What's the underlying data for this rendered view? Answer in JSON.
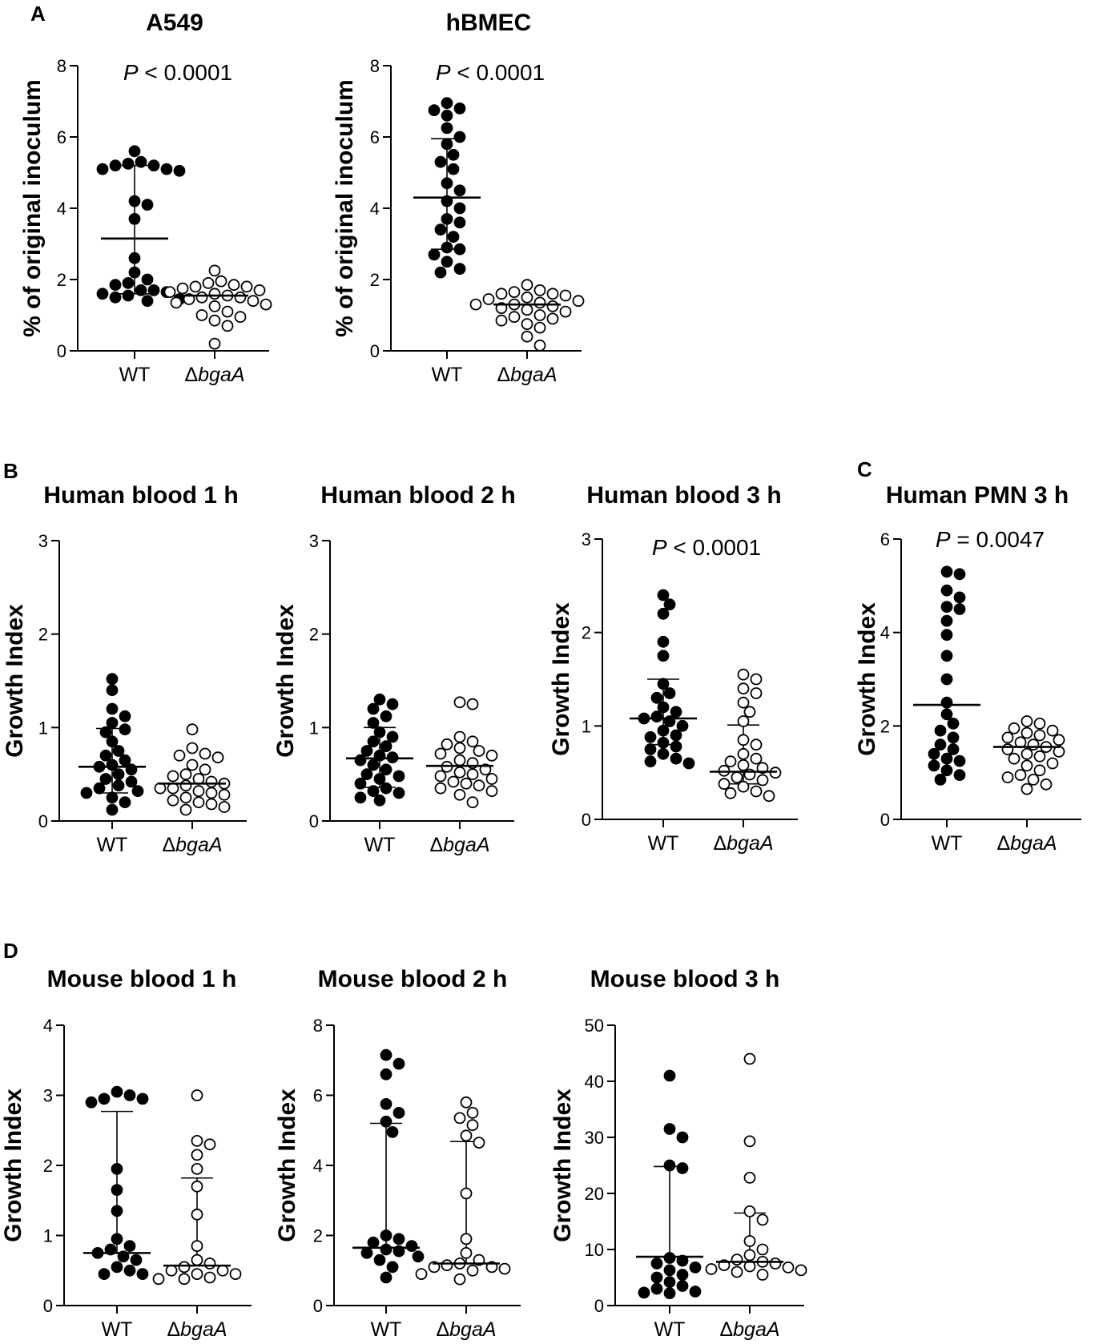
{
  "panel_labels": [
    "A",
    "B",
    "C",
    "D"
  ],
  "chart_data": [
    {
      "id": "a549",
      "type": "scatter",
      "panel": "A",
      "title": "A549",
      "ylabel": "% of original inoculum",
      "xlabel": "",
      "ylim": [
        0,
        8
      ],
      "yticks": [
        0,
        2,
        4,
        6,
        8
      ],
      "yticklabels": [
        "0",
        "2",
        "4",
        "6",
        "8"
      ],
      "categories": [
        "WT",
        "ΔbgaA"
      ],
      "annotation": {
        "prefix": "P",
        "text": " < 0.0001"
      },
      "series": [
        {
          "name": "WT",
          "fill": "filled",
          "values": [
            5.6,
            5.2,
            5.25,
            5.2,
            5.3,
            5.1,
            5.05,
            5.1,
            4.1,
            4.2,
            3.7,
            2.6,
            2.2,
            2.0,
            1.85,
            1.9,
            1.7,
            1.7,
            1.65,
            1.6,
            1.55,
            1.5,
            1.45,
            1.4
          ],
          "summary": {
            "center": 3.15,
            "lower": 1.6,
            "upper": 5.2
          }
        },
        {
          "name": "ΔbgaA",
          "fill": "open",
          "values": [
            2.25,
            1.95,
            1.9,
            1.85,
            1.8,
            1.8,
            1.75,
            1.7,
            1.65,
            1.6,
            1.55,
            1.5,
            1.5,
            1.45,
            1.4,
            1.35,
            1.3,
            1.25,
            1.1,
            1.0,
            0.95,
            0.85,
            0.7,
            0.2
          ],
          "summary": {
            "center": 1.55,
            "lower": 1.55,
            "upper": 1.55
          }
        }
      ]
    },
    {
      "id": "hbmec",
      "type": "scatter",
      "panel": "",
      "title": "hBMEC",
      "ylabel": "% of original inoculum",
      "xlabel": "",
      "ylim": [
        0,
        8
      ],
      "yticks": [
        0,
        2,
        4,
        6,
        8
      ],
      "yticklabels": [
        "0",
        "2",
        "4",
        "6",
        "8"
      ],
      "categories": [
        "WT",
        "ΔbgaA"
      ],
      "annotation": {
        "prefix": "P",
        "text": " < 0.0001"
      },
      "series": [
        {
          "name": "WT",
          "fill": "filled",
          "values": [
            6.95,
            6.8,
            6.75,
            6.6,
            6.25,
            6.0,
            5.8,
            5.5,
            5.3,
            5.1,
            4.7,
            4.5,
            4.2,
            4.0,
            3.7,
            3.6,
            3.4,
            3.2,
            2.9,
            2.85,
            2.7,
            2.5,
            2.3,
            2.2
          ],
          "summary": {
            "center": 4.3,
            "lower": 2.85,
            "upper": 5.95
          }
        },
        {
          "name": "ΔbgaA",
          "fill": "open",
          "values": [
            1.85,
            1.7,
            1.65,
            1.6,
            1.6,
            1.55,
            1.5,
            1.45,
            1.4,
            1.35,
            1.3,
            1.3,
            1.25,
            1.2,
            1.15,
            1.1,
            1.0,
            0.95,
            0.9,
            0.85,
            0.75,
            0.65,
            0.4,
            0.15
          ],
          "summary": {
            "center": 1.3,
            "lower": 1.3,
            "upper": 1.3
          }
        }
      ]
    },
    {
      "id": "hb1",
      "type": "scatter",
      "panel": "B",
      "title": "Human blood 1 h",
      "ylabel": "Growth Index",
      "xlabel": "",
      "ylim": [
        0,
        3
      ],
      "yticks": [
        0,
        1,
        2,
        3
      ],
      "yticklabels": [
        "0",
        "1",
        "2",
        "3"
      ],
      "categories": [
        "WT",
        "ΔbgaA"
      ],
      "annotation": null,
      "series": [
        {
          "name": "WT",
          "fill": "filled",
          "values": [
            1.52,
            1.4,
            1.2,
            1.12,
            1.05,
            0.98,
            0.95,
            0.85,
            0.75,
            0.7,
            0.65,
            0.6,
            0.58,
            0.55,
            0.5,
            0.45,
            0.42,
            0.38,
            0.35,
            0.32,
            0.3,
            0.25,
            0.2,
            0.12
          ],
          "summary": {
            "center": 0.58,
            "lower": 0.3,
            "upper": 0.99
          }
        },
        {
          "name": "ΔbgaA",
          "fill": "open",
          "values": [
            0.98,
            0.78,
            0.72,
            0.7,
            0.68,
            0.6,
            0.55,
            0.5,
            0.48,
            0.45,
            0.42,
            0.4,
            0.38,
            0.35,
            0.35,
            0.32,
            0.3,
            0.28,
            0.25,
            0.22,
            0.2,
            0.18,
            0.15,
            0.12
          ],
          "summary": {
            "center": 0.4,
            "lower": 0.4,
            "upper": 0.4
          }
        }
      ]
    },
    {
      "id": "hb2",
      "type": "scatter",
      "panel": "",
      "title": "Human blood 2 h",
      "ylabel": "Growth Index",
      "xlabel": "",
      "ylim": [
        0,
        3
      ],
      "yticks": [
        0,
        1,
        2,
        3
      ],
      "yticklabels": [
        "0",
        "1",
        "2",
        "3"
      ],
      "categories": [
        "WT",
        "ΔbgaA"
      ],
      "annotation": null,
      "series": [
        {
          "name": "WT",
          "fill": "filled",
          "values": [
            1.3,
            1.25,
            1.2,
            1.12,
            1.05,
            0.95,
            0.9,
            0.85,
            0.8,
            0.75,
            0.7,
            0.68,
            0.65,
            0.6,
            0.55,
            0.5,
            0.48,
            0.45,
            0.4,
            0.35,
            0.32,
            0.3,
            0.25,
            0.22
          ],
          "summary": {
            "center": 0.67,
            "lower": 0.36,
            "upper": 1.0
          }
        },
        {
          "name": "ΔbgaA",
          "fill": "open",
          "values": [
            1.27,
            1.25,
            0.9,
            0.85,
            0.82,
            0.78,
            0.75,
            0.72,
            0.7,
            0.65,
            0.62,
            0.58,
            0.55,
            0.52,
            0.5,
            0.48,
            0.45,
            0.42,
            0.4,
            0.38,
            0.35,
            0.32,
            0.28,
            0.2
          ],
          "summary": {
            "center": 0.59,
            "lower": 0.59,
            "upper": 0.59
          }
        }
      ]
    },
    {
      "id": "hb3",
      "type": "scatter",
      "panel": "",
      "title": "Human blood 3 h",
      "ylabel": "Growth Index",
      "xlabel": "",
      "ylim": [
        0,
        3
      ],
      "yticks": [
        0,
        1,
        2,
        3
      ],
      "yticklabels": [
        "0",
        "1",
        "2",
        "3"
      ],
      "categories": [
        "WT",
        "ΔbgaA"
      ],
      "annotation": {
        "prefix": "P",
        "text": " < 0.0001"
      },
      "series": [
        {
          "name": "WT",
          "fill": "filled",
          "values": [
            2.4,
            2.3,
            2.2,
            1.9,
            1.75,
            1.45,
            1.35,
            1.3,
            1.2,
            1.15,
            1.1,
            1.08,
            1.05,
            1.0,
            0.95,
            0.9,
            0.88,
            0.82,
            0.78,
            0.75,
            0.7,
            0.65,
            0.62,
            0.6
          ],
          "summary": {
            "center": 1.08,
            "lower": 0.8,
            "upper": 1.5
          }
        },
        {
          "name": "ΔbgaA",
          "fill": "open",
          "values": [
            1.55,
            1.5,
            1.4,
            1.35,
            1.25,
            1.15,
            1.05,
            0.85,
            0.8,
            0.7,
            0.65,
            0.62,
            0.58,
            0.55,
            0.52,
            0.5,
            0.48,
            0.45,
            0.42,
            0.38,
            0.35,
            0.3,
            0.28,
            0.25
          ],
          "summary": {
            "center": 0.51,
            "lower": 0.38,
            "upper": 1.01
          }
        }
      ]
    },
    {
      "id": "pmn3",
      "type": "scatter",
      "panel": "C",
      "title": "Human PMN 3 h",
      "ylabel": "Growth Index",
      "xlabel": "",
      "ylim": [
        0,
        6
      ],
      "yticks": [
        0,
        2,
        4,
        6
      ],
      "yticklabels": [
        "0",
        "2",
        "4",
        "6"
      ],
      "categories": [
        "WT",
        "ΔbgaA"
      ],
      "annotation": {
        "prefix": "P",
        "text": " = 0.0047"
      },
      "series": [
        {
          "name": "WT",
          "fill": "filled",
          "values": [
            5.3,
            5.25,
            4.9,
            4.75,
            4.55,
            4.5,
            4.25,
            3.95,
            3.5,
            3.0,
            2.5,
            2.25,
            2.05,
            1.9,
            1.75,
            1.6,
            1.5,
            1.4,
            1.3,
            1.25,
            1.15,
            1.05,
            0.95,
            0.85
          ],
          "summary": {
            "center": 2.45,
            "lower": 2.45,
            "upper": 2.45
          }
        },
        {
          "name": "ΔbgaA",
          "fill": "open",
          "values": [
            2.1,
            2.05,
            1.95,
            1.9,
            1.85,
            1.8,
            1.75,
            1.7,
            1.65,
            1.6,
            1.55,
            1.5,
            1.45,
            1.4,
            1.35,
            1.3,
            1.2,
            1.15,
            1.05,
            0.95,
            0.9,
            0.85,
            0.75,
            0.65
          ],
          "summary": {
            "center": 1.55,
            "lower": 1.55,
            "upper": 1.55
          }
        }
      ]
    },
    {
      "id": "mb1",
      "type": "scatter",
      "panel": "D",
      "title": "Mouse blood 1 h",
      "ylabel": "Growth Index",
      "xlabel": "",
      "ylim": [
        0,
        4
      ],
      "yticks": [
        0,
        1,
        2,
        3,
        4
      ],
      "yticklabels": [
        "0",
        "1",
        "2",
        "3",
        "4"
      ],
      "categories": [
        "WT",
        "ΔbgaA"
      ],
      "annotation": null,
      "series": [
        {
          "name": "WT",
          "fill": "filled",
          "values": [
            3.05,
            3.0,
            2.95,
            2.95,
            2.9,
            1.95,
            1.65,
            1.35,
            0.95,
            0.85,
            0.8,
            0.75,
            0.7,
            0.65,
            0.55,
            0.5,
            0.45,
            0.45
          ],
          "summary": {
            "center": 0.75,
            "lower": 0.75,
            "upper": 2.77
          }
        },
        {
          "name": "ΔbgaA",
          "fill": "open",
          "values": [
            3.0,
            2.35,
            2.3,
            2.15,
            1.95,
            1.7,
            1.3,
            0.85,
            0.65,
            0.6,
            0.55,
            0.5,
            0.5,
            0.45,
            0.45,
            0.4,
            0.38,
            0.38
          ],
          "summary": {
            "center": 0.57,
            "lower": 0.57,
            "upper": 1.82
          }
        }
      ]
    },
    {
      "id": "mb2",
      "type": "scatter",
      "panel": "",
      "title": "Mouse blood 2 h",
      "ylabel": "Growth Index",
      "xlabel": "",
      "ylim": [
        0,
        8
      ],
      "yticks": [
        0,
        2,
        4,
        6,
        8
      ],
      "yticklabels": [
        "0",
        "2",
        "4",
        "6",
        "8"
      ],
      "categories": [
        "WT",
        "ΔbgaA"
      ],
      "annotation": null,
      "series": [
        {
          "name": "WT",
          "fill": "filled",
          "values": [
            7.15,
            6.9,
            6.6,
            5.75,
            5.5,
            5.25,
            4.95,
            2.0,
            1.9,
            1.8,
            1.7,
            1.6,
            1.55,
            1.5,
            1.4,
            1.3,
            1.1,
            0.8
          ],
          "summary": {
            "center": 1.65,
            "lower": 1.65,
            "upper": 5.2
          }
        },
        {
          "name": "ΔbgaA",
          "fill": "open",
          "values": [
            5.8,
            5.5,
            5.35,
            5.15,
            4.85,
            4.65,
            3.2,
            1.9,
            1.5,
            1.3,
            1.2,
            1.15,
            1.1,
            1.1,
            1.05,
            1.0,
            0.9,
            0.75
          ],
          "summary": {
            "center": 1.2,
            "lower": 1.2,
            "upper": 4.68
          }
        }
      ]
    },
    {
      "id": "mb3",
      "type": "scatter",
      "panel": "",
      "title": "Mouse blood 3 h",
      "ylabel": "Growth Index",
      "xlabel": "",
      "ylim": [
        0,
        50
      ],
      "yticks": [
        0,
        10,
        20,
        30,
        40,
        50
      ],
      "yticklabels": [
        "0",
        "10",
        "20",
        "30",
        "40",
        "50"
      ],
      "categories": [
        "WT",
        "ΔbgaA"
      ],
      "annotation": null,
      "series": [
        {
          "name": "WT",
          "fill": "filled",
          "values": [
            41,
            31.5,
            30,
            25,
            24.5,
            8.5,
            8,
            7.5,
            6.8,
            6.3,
            5.5,
            5,
            4.2,
            3.5,
            3,
            2.5,
            2.3,
            2.2
          ],
          "summary": {
            "center": 8.7,
            "lower": 8.7,
            "upper": 24.8
          }
        },
        {
          "name": "ΔbgaA",
          "fill": "open",
          "values": [
            44,
            29.3,
            22.8,
            16.8,
            15.3,
            11.5,
            10,
            9,
            8.2,
            7.8,
            7.5,
            7.2,
            7,
            6.8,
            6.5,
            6.3,
            6,
            5.5
          ],
          "summary": {
            "center": 7.8,
            "lower": 7.8,
            "upper": 16.5
          }
        }
      ]
    }
  ]
}
